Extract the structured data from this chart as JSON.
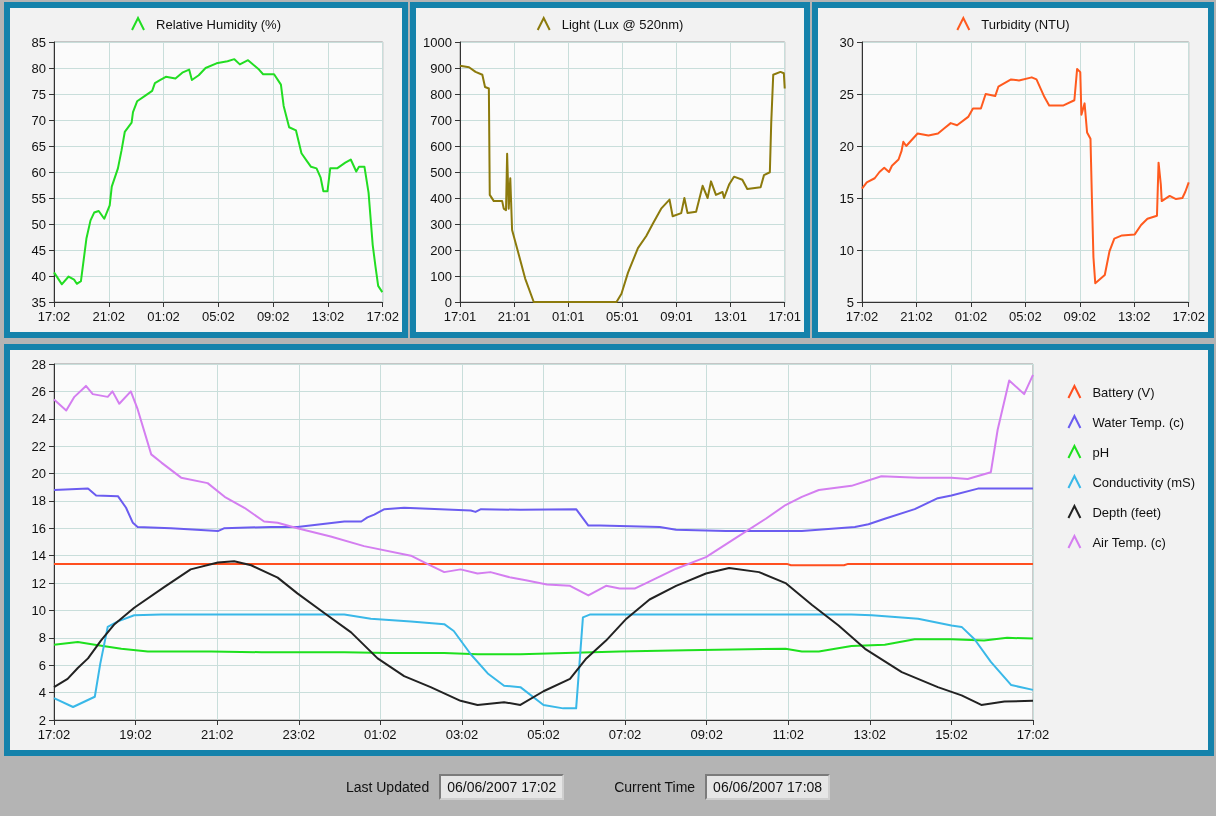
{
  "chart_data": [
    {
      "type": "line",
      "legend": "top",
      "grid": true,
      "xlim": [
        "2007-06-05T17:02",
        "2007-06-06T17:02"
      ],
      "ylim": [
        35,
        85
      ],
      "xticks": [
        {
          "value": "2007-06-05T17:02",
          "label": "17:02"
        },
        {
          "value": "2007-06-05T21:02",
          "label": "21:02"
        },
        {
          "value": "2007-06-06T01:02",
          "label": "01:02"
        },
        {
          "value": "2007-06-06T05:02",
          "label": "05:02"
        },
        {
          "value": "2007-06-06T09:02",
          "label": "09:02"
        },
        {
          "value": "2007-06-06T13:02",
          "label": "13:02"
        },
        {
          "value": "2007-06-06T17:02",
          "label": "17:02"
        }
      ],
      "yticks": [
        35,
        40,
        45,
        50,
        55,
        60,
        65,
        70,
        75,
        80,
        85
      ],
      "series": [
        {
          "name": "Relative Humidity (%)",
          "color": "#22dd22",
          "x": [
            "2007-06-05T17:02",
            "2007-06-05T17:23",
            "2007-06-05T17:36",
            "2007-06-05T18:06",
            "2007-06-05T18:30",
            "2007-06-05T18:42",
            "2007-06-05T19:00",
            "2007-06-05T19:24",
            "2007-06-05T19:42",
            "2007-06-05T19:58",
            "2007-06-05T20:18",
            "2007-06-05T20:42",
            "2007-06-05T21:06",
            "2007-06-05T21:15",
            "2007-06-05T21:42",
            "2007-06-05T21:58",
            "2007-06-05T22:12",
            "2007-06-05T22:42",
            "2007-06-05T22:48",
            "2007-06-05T23:06",
            "2007-06-05T23:42",
            "2007-06-06T00:12",
            "2007-06-06T00:24",
            "2007-06-06T00:48",
            "2007-06-06T01:12",
            "2007-06-06T01:54",
            "2007-06-06T02:24",
            "2007-06-06T02:54",
            "2007-06-06T03:06",
            "2007-06-06T03:36",
            "2007-06-06T04:06",
            "2007-06-06T04:54",
            "2007-06-06T05:42",
            "2007-06-06T06:12",
            "2007-06-06T06:36",
            "2007-06-06T07:12",
            "2007-06-06T08:00",
            "2007-06-06T08:18",
            "2007-06-06T09:06",
            "2007-06-06T09:36",
            "2007-06-06T09:48",
            "2007-06-06T10:12",
            "2007-06-06T10:42",
            "2007-06-06T11:06",
            "2007-06-06T11:30",
            "2007-06-06T11:48",
            "2007-06-06T12:12",
            "2007-06-06T12:30",
            "2007-06-06T12:42",
            "2007-06-06T13:00",
            "2007-06-06T13:12",
            "2007-06-06T13:42",
            "2007-06-06T14:18",
            "2007-06-06T14:42",
            "2007-06-06T15:06",
            "2007-06-06T15:18",
            "2007-06-06T15:42",
            "2007-06-06T16:00",
            "2007-06-06T16:18",
            "2007-06-06T16:30",
            "2007-06-06T16:42",
            "2007-06-06T17:00"
          ],
          "values": [
            40.7,
            39.3,
            38.4,
            39.9,
            39.3,
            38.5,
            39.0,
            47.2,
            50.7,
            52.2,
            52.5,
            51.0,
            53.6,
            57.2,
            60.7,
            64.2,
            67.7,
            69.5,
            71.5,
            73.6,
            74.7,
            75.6,
            77.1,
            77.7,
            78.3,
            78.0,
            79.1,
            79.7,
            77.7,
            78.6,
            80.0,
            80.9,
            81.3,
            81.7,
            80.7,
            81.5,
            79.7,
            78.8,
            78.8,
            76.8,
            72.7,
            68.6,
            68.0,
            63.6,
            62.1,
            61.0,
            60.7,
            58.9,
            56.3,
            56.3,
            60.7,
            60.7,
            61.8,
            62.4,
            60.1,
            61.0,
            61.0,
            56.0,
            46.0,
            41.9,
            38.1,
            36.9
          ]
        }
      ]
    },
    {
      "type": "line",
      "legend": "top",
      "grid": true,
      "xlim": [
        "2007-06-05T17:01",
        "2007-06-06T17:01"
      ],
      "ylim": [
        0,
        1000
      ],
      "xticks": [
        {
          "value": "2007-06-05T17:01",
          "label": "17:01"
        },
        {
          "value": "2007-06-05T21:01",
          "label": "21:01"
        },
        {
          "value": "2007-06-06T01:01",
          "label": "01:01"
        },
        {
          "value": "2007-06-06T05:01",
          "label": "05:01"
        },
        {
          "value": "2007-06-06T09:01",
          "label": "09:01"
        },
        {
          "value": "2007-06-06T13:01",
          "label": "13:01"
        },
        {
          "value": "2007-06-06T17:01",
          "label": "17:01"
        }
      ],
      "yticks": [
        0,
        100,
        200,
        300,
        400,
        500,
        600,
        700,
        800,
        900,
        1000
      ],
      "series": [
        {
          "name": "Light (Lux @ 520nm)",
          "color": "#8c7a0c",
          "x": [
            "2007-06-05T17:01",
            "2007-06-05T17:41",
            "2007-06-05T18:10",
            "2007-06-05T18:40",
            "2007-06-05T18:52",
            "2007-06-05T19:09",
            "2007-06-05T19:13",
            "2007-06-05T19:31",
            "2007-06-05T20:08",
            "2007-06-05T20:15",
            "2007-06-05T20:25",
            "2007-06-05T20:30",
            "2007-06-05T20:37",
            "2007-06-05T20:44",
            "2007-06-05T20:52",
            "2007-06-05T21:14",
            "2007-06-05T21:50",
            "2007-06-05T22:28",
            "2007-06-06T04:35",
            "2007-06-06T04:57",
            "2007-06-06T05:26",
            "2007-06-06T06:10",
            "2007-06-06T06:47",
            "2007-06-06T07:16",
            "2007-06-06T07:53",
            "2007-06-06T08:30",
            "2007-06-06T08:44",
            "2007-06-06T09:22",
            "2007-06-06T09:36",
            "2007-06-06T09:50",
            "2007-06-06T10:28",
            "2007-06-06T10:57",
            "2007-06-06T11:19",
            "2007-06-06T11:34",
            "2007-06-06T11:56",
            "2007-06-06T12:25",
            "2007-06-06T12:32",
            "2007-06-06T12:55",
            "2007-06-06T13:16",
            "2007-06-06T13:53",
            "2007-06-06T14:15",
            "2007-06-06T15:14",
            "2007-06-06T15:29",
            "2007-06-06T15:55",
            "2007-06-06T16:01",
            "2007-06-06T16:10",
            "2007-06-06T16:42",
            "2007-06-06T16:57",
            "2007-06-06T17:01"
          ],
          "values": [
            909,
            903,
            885,
            874,
            827,
            821,
            412,
            388,
            388,
            359,
            353,
            570,
            359,
            476,
            277,
            207,
            90,
            0,
            0,
            32,
            113,
            207,
            254,
            301,
            359,
            394,
            330,
            342,
            400,
            342,
            347,
            447,
            400,
            464,
            412,
            423,
            400,
            453,
            482,
            470,
            435,
            441,
            488,
            499,
            687,
            874,
            885,
            880,
            821
          ]
        }
      ]
    },
    {
      "type": "line",
      "legend": "top",
      "grid": true,
      "xlim": [
        "2007-06-05T17:02",
        "2007-06-06T17:02"
      ],
      "ylim": [
        5,
        30
      ],
      "xticks": [
        {
          "value": "2007-06-05T17:02",
          "label": "17:02"
        },
        {
          "value": "2007-06-05T21:02",
          "label": "21:02"
        },
        {
          "value": "2007-06-06T01:02",
          "label": "01:02"
        },
        {
          "value": "2007-06-06T05:02",
          "label": "05:02"
        },
        {
          "value": "2007-06-06T09:02",
          "label": "09:02"
        },
        {
          "value": "2007-06-06T13:02",
          "label": "13:02"
        },
        {
          "value": "2007-06-06T17:02",
          "label": "17:02"
        }
      ],
      "yticks": [
        5,
        10,
        15,
        20,
        25,
        30
      ],
      "series": [
        {
          "name": "Turbidity (NTU)",
          "color": "#ff5a1e",
          "x": [
            "2007-06-05T17:02",
            "2007-06-05T17:23",
            "2007-06-05T17:58",
            "2007-06-05T18:19",
            "2007-06-05T18:40",
            "2007-06-05T19:01",
            "2007-06-05T19:14",
            "2007-06-05T19:43",
            "2007-06-05T19:56",
            "2007-06-05T20:04",
            "2007-06-05T20:17",
            "2007-06-05T20:46",
            "2007-06-05T21:07",
            "2007-06-05T21:55",
            "2007-06-05T22:37",
            "2007-06-05T23:05",
            "2007-06-05T23:33",
            "2007-06-06T00:01",
            "2007-06-06T00:50",
            "2007-06-06T01:11",
            "2007-06-06T01:46",
            "2007-06-06T02:07",
            "2007-06-06T02:49",
            "2007-06-06T03:03",
            "2007-06-06T03:59",
            "2007-06-06T04:34",
            "2007-06-06T05:30",
            "2007-06-06T05:51",
            "2007-06-06T06:26",
            "2007-06-06T06:47",
            "2007-06-06T07:50",
            "2007-06-06T08:38",
            "2007-06-06T08:50",
            "2007-06-06T09:04",
            "2007-06-06T09:09",
            "2007-06-06T09:23",
            "2007-06-06T09:34",
            "2007-06-06T09:49",
            "2007-06-06T09:55",
            "2007-06-06T10:02",
            "2007-06-06T10:10",
            "2007-06-06T10:52",
            "2007-06-06T11:13",
            "2007-06-06T11:34",
            "2007-06-06T12:08",
            "2007-06-06T13:04",
            "2007-06-06T13:32",
            "2007-06-06T14:00",
            "2007-06-06T14:42",
            "2007-06-06T14:49",
            "2007-06-06T14:59",
            "2007-06-06T15:03",
            "2007-06-06T15:38",
            "2007-06-06T16:06",
            "2007-06-06T16:34",
            "2007-06-06T16:47",
            "2007-06-06T17:02"
          ],
          "values": [
            15.9,
            16.5,
            16.9,
            17.5,
            17.9,
            17.5,
            18.1,
            18.7,
            19.5,
            20.4,
            20.0,
            20.7,
            21.2,
            21.0,
            21.2,
            21.7,
            22.2,
            22.0,
            22.8,
            23.6,
            23.6,
            25.0,
            24.8,
            25.7,
            26.4,
            26.3,
            26.6,
            26.4,
            24.7,
            23.9,
            23.9,
            24.4,
            27.4,
            27.1,
            23.0,
            24.1,
            21.3,
            20.7,
            15.2,
            9.3,
            6.8,
            7.6,
            9.9,
            11.1,
            11.4,
            11.5,
            12.4,
            13.0,
            13.3,
            18.4,
            16.3,
            14.7,
            15.2,
            14.9,
            15.0,
            15.6,
            16.5
          ]
        }
      ]
    },
    {
      "type": "line",
      "legend": "right",
      "grid": true,
      "xlim": [
        "2007-06-05T17:02",
        "2007-06-06T17:02"
      ],
      "ylim": [
        2,
        28
      ],
      "xticks": [
        {
          "value": "2007-06-05T17:02",
          "label": "17:02"
        },
        {
          "value": "2007-06-05T19:02",
          "label": "19:02"
        },
        {
          "value": "2007-06-05T21:02",
          "label": "21:02"
        },
        {
          "value": "2007-06-05T23:02",
          "label": "23:02"
        },
        {
          "value": "2007-06-06T01:02",
          "label": "01:02"
        },
        {
          "value": "2007-06-06T03:02",
          "label": "03:02"
        },
        {
          "value": "2007-06-06T05:02",
          "label": "05:02"
        },
        {
          "value": "2007-06-06T07:02",
          "label": "07:02"
        },
        {
          "value": "2007-06-06T09:02",
          "label": "09:02"
        },
        {
          "value": "2007-06-06T11:02",
          "label": "11:02"
        },
        {
          "value": "2007-06-06T13:02",
          "label": "13:02"
        },
        {
          "value": "2007-06-06T15:02",
          "label": "15:02"
        },
        {
          "value": "2007-06-06T17:02",
          "label": "17:02"
        }
      ],
      "yticks": [
        2,
        4,
        6,
        8,
        10,
        12,
        14,
        16,
        18,
        20,
        22,
        24,
        26,
        28
      ],
      "series": [
        {
          "name": "Battery (V)",
          "color": "#ff4f1f",
          "x": [
            "2007-06-05T17:02",
            "2007-06-06T11:00",
            "2007-06-06T11:06",
            "2007-06-06T12:24",
            "2007-06-06T12:30",
            "2007-06-06T17:02"
          ],
          "values": [
            13.4,
            13.4,
            13.3,
            13.3,
            13.4,
            13.4
          ]
        },
        {
          "name": "Water Temp. (c)",
          "color": "#6b5cf0",
          "x": [
            "2007-06-05T17:02",
            "2007-06-05T17:52",
            "2007-06-05T18:04",
            "2007-06-05T18:36",
            "2007-06-05T18:48",
            "2007-06-05T18:58",
            "2007-06-05T19:05",
            "2007-06-05T19:54",
            "2007-06-05T21:03",
            "2007-06-05T21:12",
            "2007-06-05T22:21",
            "2007-06-05T23:00",
            "2007-06-06T00:09",
            "2007-06-06T00:34",
            "2007-06-06T00:43",
            "2007-06-06T00:53",
            "2007-06-06T01:08",
            "2007-06-06T01:37",
            "2007-06-06T03:15",
            "2007-06-06T03:22",
            "2007-06-06T03:30",
            "2007-06-06T04:28",
            "2007-06-06T05:50",
            "2007-06-06T06:08",
            "2007-06-06T06:25",
            "2007-06-06T07:53",
            "2007-06-06T08:17",
            "2007-06-06T09:30",
            "2007-06-06T11:22",
            "2007-06-06T12:40",
            "2007-06-06T13:00",
            "2007-06-06T13:24",
            "2007-06-06T14:08",
            "2007-06-06T14:42",
            "2007-06-06T15:02",
            "2007-06-06T15:41",
            "2007-06-06T17:02"
          ],
          "values": [
            18.8,
            18.9,
            18.4,
            18.35,
            17.5,
            16.4,
            16.1,
            16.0,
            15.8,
            16.0,
            16.1,
            16.1,
            16.5,
            16.5,
            16.8,
            17.0,
            17.4,
            17.5,
            17.3,
            17.2,
            17.4,
            17.35,
            17.4,
            16.2,
            16.2,
            16.1,
            15.9,
            15.8,
            15.8,
            16.1,
            16.3,
            16.7,
            17.4,
            18.2,
            18.4,
            18.9,
            18.9
          ]
        },
        {
          "name": "pH",
          "color": "#1ee01e",
          "x": [
            "2007-06-05T17:02",
            "2007-06-05T17:37",
            "2007-06-05T18:02",
            "2007-06-05T18:41",
            "2007-06-05T19:20",
            "2007-06-05T19:54",
            "2007-06-05T20:53",
            "2007-06-05T22:07",
            "2007-06-06T00:09",
            "2007-06-06T01:13",
            "2007-06-06T02:36",
            "2007-06-06T03:25",
            "2007-06-06T04:28",
            "2007-06-06T06:54",
            "2007-06-06T08:32",
            "2007-06-06T10:58",
            "2007-06-06T11:22",
            "2007-06-06T11:47",
            "2007-06-06T12:35",
            "2007-06-06T13:24",
            "2007-06-06T14:08",
            "2007-06-06T15:02",
            "2007-06-06T15:50",
            "2007-06-06T16:24",
            "2007-06-06T17:02"
          ],
          "values": [
            7.5,
            7.7,
            7.5,
            7.2,
            7.0,
            7.0,
            7.0,
            6.95,
            6.95,
            6.9,
            6.9,
            6.8,
            6.8,
            7.0,
            7.1,
            7.2,
            7.0,
            7.0,
            7.4,
            7.5,
            7.9,
            7.9,
            7.8,
            8.0,
            7.95
          ]
        },
        {
          "name": "Conductivity (mS)",
          "color": "#39b8e8",
          "x": [
            "2007-06-05T17:02",
            "2007-06-05T17:30",
            "2007-06-05T18:02",
            "2007-06-05T18:10",
            "2007-06-05T18:21",
            "2007-06-05T18:36",
            "2007-06-05T19:00",
            "2007-06-05T19:40",
            "2007-06-06T00:09",
            "2007-06-06T00:48",
            "2007-06-06T01:47",
            "2007-06-06T02:36",
            "2007-06-06T02:50",
            "2007-06-06T03:15",
            "2007-06-06T03:40",
            "2007-06-06T04:04",
            "2007-06-06T04:28",
            "2007-06-06T05:02",
            "2007-06-06T05:31",
            "2007-06-06T05:50",
            "2007-06-06T06:00",
            "2007-06-06T06:10",
            "2007-06-06T12:35",
            "2007-06-06T13:05",
            "2007-06-06T14:13",
            "2007-06-06T15:02",
            "2007-06-06T15:17",
            "2007-06-06T15:36",
            "2007-06-06T16:00",
            "2007-06-06T16:30",
            "2007-06-06T17:02"
          ],
          "values": [
            3.6,
            2.95,
            3.7,
            6.1,
            8.8,
            9.2,
            9.65,
            9.7,
            9.7,
            9.4,
            9.2,
            9.0,
            8.5,
            6.8,
            5.4,
            4.5,
            4.4,
            3.1,
            2.85,
            2.85,
            9.5,
            9.7,
            9.7,
            9.65,
            9.4,
            8.9,
            8.8,
            7.9,
            6.25,
            4.55,
            4.2
          ]
        },
        {
          "name": "Depth (feet)",
          "color": "#222222",
          "x": [
            "2007-06-05T17:02",
            "2007-06-05T17:22",
            "2007-06-05T17:37",
            "2007-06-05T17:52",
            "2007-06-05T18:11",
            "2007-06-05T18:31",
            "2007-06-05T19:00",
            "2007-06-05T19:44",
            "2007-06-05T20:23",
            "2007-06-05T21:03",
            "2007-06-05T21:27",
            "2007-06-05T21:52",
            "2007-06-05T22:31",
            "2007-06-05T23:00",
            "2007-06-05T23:40",
            "2007-06-06T00:19",
            "2007-06-06T00:58",
            "2007-06-06T01:37",
            "2007-06-06T02:16",
            "2007-06-06T03:00",
            "2007-06-06T03:25",
            "2007-06-06T04:04",
            "2007-06-06T04:28",
            "2007-06-06T05:02",
            "2007-06-06T05:41",
            "2007-06-06T06:05",
            "2007-06-06T06:34",
            "2007-06-06T07:04",
            "2007-06-06T07:38",
            "2007-06-06T08:17",
            "2007-06-06T09:01",
            "2007-06-06T09:35",
            "2007-06-06T10:19",
            "2007-06-06T10:58",
            "2007-06-06T11:37",
            "2007-06-06T12:16",
            "2007-06-06T12:55",
            "2007-06-06T13:49",
            "2007-06-06T14:42",
            "2007-06-06T15:17",
            "2007-06-06T15:46",
            "2007-06-06T16:20",
            "2007-06-06T17:02"
          ],
          "values": [
            4.4,
            5.0,
            5.8,
            6.5,
            7.8,
            9.0,
            10.2,
            11.7,
            13.0,
            13.5,
            13.6,
            13.3,
            12.4,
            11.25,
            9.8,
            8.4,
            6.5,
            5.2,
            4.4,
            3.4,
            3.1,
            3.3,
            3.1,
            4.1,
            5.0,
            6.5,
            7.8,
            9.4,
            10.8,
            11.8,
            12.7,
            13.1,
            12.8,
            12.0,
            10.4,
            8.9,
            7.2,
            5.5,
            4.4,
            3.8,
            3.1,
            3.35,
            3.4
          ]
        },
        {
          "name": "Air Temp. (c)",
          "color": "#d47ef0",
          "x": [
            "2007-06-05T17:02",
            "2007-06-05T17:20",
            "2007-06-05T17:32",
            "2007-06-05T17:49",
            "2007-06-05T17:59",
            "2007-06-05T18:21",
            "2007-06-05T18:28",
            "2007-06-05T18:38",
            "2007-06-05T18:55",
            "2007-06-05T19:05",
            "2007-06-05T19:25",
            "2007-06-05T19:40",
            "2007-06-05T20:09",
            "2007-06-05T20:48",
            "2007-06-05T21:13",
            "2007-06-05T21:42",
            "2007-06-05T22:11",
            "2007-06-05T22:31",
            "2007-06-05T23:00",
            "2007-06-05T23:49",
            "2007-06-06T00:38",
            "2007-06-06T01:47",
            "2007-06-06T02:11",
            "2007-06-06T02:36",
            "2007-06-06T03:00",
            "2007-06-06T03:25",
            "2007-06-06T03:44",
            "2007-06-06T04:14",
            "2007-06-06T04:36",
            "2007-06-06T05:07",
            "2007-06-06T05:41",
            "2007-06-06T06:08",
            "2007-06-06T06:34",
            "2007-06-06T06:54",
            "2007-06-06T07:16",
            "2007-06-06T07:33",
            "2007-06-06T08:17",
            "2007-06-06T09:01",
            "2007-06-06T09:45",
            "2007-06-06T10:29",
            "2007-06-06T10:58",
            "2007-06-06T11:22",
            "2007-06-06T11:47",
            "2007-06-06T12:35",
            "2007-06-06T13:19",
            "2007-06-06T14:13",
            "2007-06-06T15:02",
            "2007-06-06T15:26",
            "2007-06-06T16:00",
            "2007-06-06T16:10",
            "2007-06-06T16:27",
            "2007-06-06T16:49",
            "2007-06-06T17:02"
          ],
          "values": [
            25.4,
            24.6,
            25.6,
            26.4,
            25.8,
            25.6,
            26.0,
            25.1,
            26.0,
            24.7,
            21.4,
            20.8,
            19.7,
            19.3,
            18.3,
            17.5,
            16.5,
            16.4,
            16.0,
            15.4,
            14.7,
            14.0,
            13.4,
            12.8,
            13.0,
            12.7,
            12.8,
            12.4,
            12.2,
            11.9,
            11.8,
            11.1,
            11.8,
            11.6,
            11.6,
            12.0,
            13.05,
            13.9,
            15.3,
            16.7,
            17.7,
            18.3,
            18.8,
            19.1,
            19.8,
            19.7,
            19.7,
            19.6,
            20.1,
            23.2,
            26.8,
            25.8,
            27.2
          ]
        }
      ]
    },
    {
      "type": "other",
      "annotations": [
        "Last Updated",
        "06/06/2007 17:02",
        "Current Time",
        "06/06/2007 17:08"
      ]
    }
  ]
}
